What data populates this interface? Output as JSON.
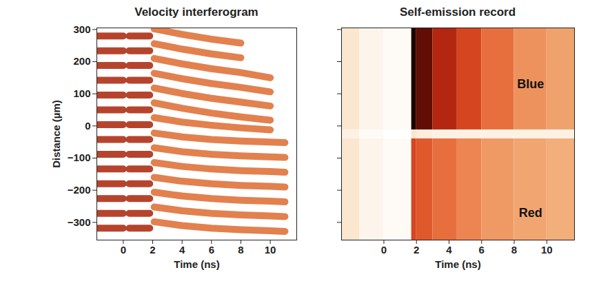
{
  "chart_data": [
    {
      "type": "line",
      "title": "Velocity interferogram",
      "x_label": "Time (ns)",
      "y_label": "Distance (µm)",
      "xlim": [
        -1.8,
        11.8
      ],
      "ylim": [
        -355,
        305
      ],
      "xticks": [
        0,
        2,
        4,
        6,
        8,
        10
      ],
      "yticks": [
        -300,
        -200,
        -100,
        0,
        100,
        200,
        300
      ],
      "series": [
        {
          "color": "#b23a22",
          "x": [
            -1.8,
            0.0,
            0.2,
            0.4,
            1.8
          ],
          "values": [
            280,
            280,
            null,
            280,
            280
          ]
        },
        {
          "color": "#b23a22",
          "x": [
            -1.8,
            0.0,
            0.2,
            0.4,
            1.8
          ],
          "values": [
            234,
            234,
            null,
            234,
            234
          ]
        },
        {
          "color": "#b23a22",
          "x": [
            -1.8,
            0.0,
            0.2,
            0.4,
            1.8
          ],
          "values": [
            188,
            188,
            null,
            188,
            188
          ]
        },
        {
          "color": "#b23a22",
          "x": [
            -1.8,
            0.0,
            0.2,
            0.4,
            1.8
          ],
          "values": [
            142,
            142,
            null,
            142,
            142
          ]
        },
        {
          "color": "#b23a22",
          "x": [
            -1.8,
            0.0,
            0.2,
            0.4,
            1.8
          ],
          "values": [
            96,
            96,
            null,
            96,
            96
          ]
        },
        {
          "color": "#b23a22",
          "x": [
            -1.8,
            0.0,
            0.2,
            0.4,
            1.8
          ],
          "values": [
            50,
            50,
            null,
            50,
            50
          ]
        },
        {
          "color": "#b23a22",
          "x": [
            -1.8,
            0.0,
            0.2,
            0.4,
            1.8
          ],
          "values": [
            4,
            4,
            null,
            4,
            4
          ]
        },
        {
          "color": "#b23a22",
          "x": [
            -1.8,
            0.0,
            0.2,
            0.4,
            1.8
          ],
          "values": [
            -42,
            -42,
            null,
            -42,
            -42
          ]
        },
        {
          "color": "#b23a22",
          "x": [
            -1.8,
            0.0,
            0.2,
            0.4,
            1.8
          ],
          "values": [
            -88,
            -88,
            null,
            -88,
            -88
          ]
        },
        {
          "color": "#b23a22",
          "x": [
            -1.8,
            0.0,
            0.2,
            0.4,
            1.8
          ],
          "values": [
            -134,
            -134,
            null,
            -134,
            -134
          ]
        },
        {
          "color": "#b23a22",
          "x": [
            -1.8,
            0.0,
            0.2,
            0.4,
            1.8
          ],
          "values": [
            -180,
            -180,
            null,
            -180,
            -180
          ]
        },
        {
          "color": "#b23a22",
          "x": [
            -1.8,
            0.0,
            0.2,
            0.4,
            1.8
          ],
          "values": [
            -226,
            -226,
            null,
            -226,
            -226
          ]
        },
        {
          "color": "#b23a22",
          "x": [
            -1.8,
            0.0,
            0.2,
            0.4,
            1.8
          ],
          "values": [
            -272,
            -272,
            null,
            -272,
            -272
          ]
        },
        {
          "color": "#b23a22",
          "x": [
            -1.8,
            0.0,
            0.2,
            0.4,
            1.8
          ],
          "values": [
            -318,
            -318,
            null,
            -318,
            -318
          ]
        },
        {
          "color": "#e07a44",
          "x": [
            2.1,
            4,
            6,
            8,
            10,
            11
          ],
          "values": [
            302,
            285,
            270,
            258,
            null,
            null
          ]
        },
        {
          "color": "#e07a44",
          "x": [
            2.1,
            4,
            6,
            8,
            10,
            11
          ],
          "values": [
            256,
            239,
            224,
            212,
            null,
            null
          ]
        },
        {
          "color": "#e07a44",
          "x": [
            2.1,
            4,
            6,
            8,
            10,
            11
          ],
          "values": [
            210,
            193,
            178,
            166,
            150,
            null
          ]
        },
        {
          "color": "#e07a44",
          "x": [
            2.1,
            4,
            6,
            8,
            10,
            11
          ],
          "values": [
            164,
            147,
            132,
            120,
            106,
            null
          ]
        },
        {
          "color": "#e07a44",
          "x": [
            2.1,
            4,
            6,
            8,
            10,
            11
          ],
          "values": [
            118,
            101,
            86,
            74,
            62,
            null
          ]
        },
        {
          "color": "#e07a44",
          "x": [
            2.1,
            4,
            6,
            8,
            10,
            11
          ],
          "values": [
            72,
            55,
            40,
            28,
            18,
            null
          ]
        },
        {
          "color": "#e07a44",
          "x": [
            2.1,
            4,
            6,
            8,
            10,
            11
          ],
          "values": [
            26,
            12,
            2,
            -6,
            -12,
            null
          ]
        },
        {
          "color": "#e07a44",
          "x": [
            2.1,
            4,
            6,
            8,
            10,
            11
          ],
          "values": [
            -22,
            -34,
            -42,
            -47,
            -50,
            -52
          ]
        },
        {
          "color": "#e07a44",
          "x": [
            2.1,
            4,
            6,
            8,
            10,
            11
          ],
          "values": [
            -68,
            -80,
            -88,
            -93,
            -96,
            -98
          ]
        },
        {
          "color": "#e07a44",
          "x": [
            2.1,
            4,
            6,
            8,
            10,
            11
          ],
          "values": [
            -114,
            -126,
            -134,
            -139,
            -142,
            -144
          ]
        },
        {
          "color": "#e07a44",
          "x": [
            2.1,
            4,
            6,
            8,
            10,
            11
          ],
          "values": [
            -160,
            -172,
            -180,
            -185,
            -188,
            -190
          ]
        },
        {
          "color": "#e07a44",
          "x": [
            2.1,
            4,
            6,
            8,
            10,
            11
          ],
          "values": [
            -206,
            -218,
            -226,
            -231,
            -234,
            -236
          ]
        },
        {
          "color": "#e07a44",
          "x": [
            2.1,
            4,
            6,
            8,
            10,
            11
          ],
          "values": [
            -252,
            -264,
            -272,
            -277,
            -280,
            -282
          ]
        },
        {
          "color": "#e07a44",
          "x": [
            2.1,
            4,
            6,
            8,
            10,
            11
          ],
          "values": [
            -298,
            -310,
            -318,
            -323,
            -326,
            -328
          ]
        }
      ]
    },
    {
      "type": "heatmap",
      "title": "Self-emission record",
      "x_label": "Time (ns)",
      "xlim": [
        -2.6,
        11.7
      ],
      "ylim": [
        -355,
        305
      ],
      "xticks": [
        0,
        2,
        4,
        6,
        8,
        10
      ],
      "yticks": [
        -300,
        -200,
        -100,
        0,
        100,
        200,
        300
      ],
      "tick_labels": "x",
      "x_edges": [
        -2.6,
        -1.5,
        0,
        1.7,
        2.0,
        3,
        4.5,
        6,
        8,
        10,
        11.7
      ],
      "y_edges": [
        -355,
        -40,
        -12,
        305
      ],
      "cells": [
        [
          0.15,
          0.08,
          0.05,
          0.6,
          0.55,
          0.5,
          0.45,
          0.4,
          0.37,
          0.35
        ],
        [
          0.1,
          0.05,
          0.03,
          0.15,
          0.12,
          0.1,
          0.1,
          0.1,
          0.1,
          0.1
        ],
        [
          0.15,
          0.08,
          0.05,
          0.95,
          0.85,
          0.7,
          0.6,
          0.5,
          0.42,
          0.38
        ]
      ],
      "annotations": [
        {
          "text": "Blue",
          "x": 9,
          "y": 130
        },
        {
          "text": "Red",
          "x": 9,
          "y": -270
        }
      ]
    }
  ]
}
